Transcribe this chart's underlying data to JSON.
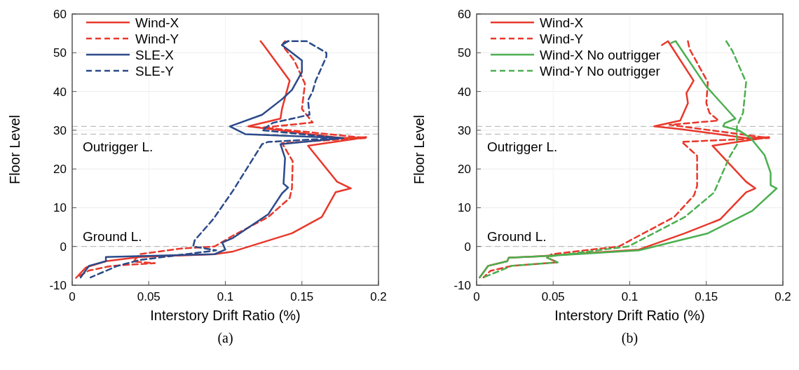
{
  "chart_data": [
    {
      "type": "line",
      "xlabel": "Interstory Drift Ratio (%)",
      "ylabel": "Floor Level",
      "xlim": [
        0,
        0.2
      ],
      "xticks": [
        0,
        0.05,
        0.1,
        0.15,
        0.2
      ],
      "ylim": [
        -10,
        60
      ],
      "yticks": [
        -10,
        0,
        10,
        20,
        30,
        40,
        50,
        60
      ],
      "grid": true,
      "legend": "top left",
      "ref_lines": [
        {
          "axis": "y",
          "value": 31,
          "color": "#b0b0b0",
          "line_style": "dashed"
        },
        {
          "axis": "y",
          "value": 29,
          "color": "#b0b0b0",
          "line_style": "dashed"
        },
        {
          "axis": "y",
          "value": 0,
          "color": "#b0b0b0",
          "line_style": "dashed"
        }
      ],
      "annotations": [
        "Outrigger L.",
        "Ground L.",
        "(a)"
      ],
      "series": [
        {
          "name": "Wind-X",
          "color": "#e8382b",
          "line_style": "solid",
          "x": [
            0.123,
            0.125,
            0.142,
            0.137,
            0.136,
            0.115,
            0.176,
            0.192,
            0.154,
            0.173,
            0.182,
            0.172,
            0.163,
            0.1435,
            0.105,
            0.093,
            0.044,
            0.022,
            0.009,
            0.0025
          ],
          "values": [
            53,
            52,
            42.8,
            35.5,
            33,
            31,
            28,
            28.2,
            26,
            16.7,
            15,
            14,
            7.6,
            3.4,
            -1.3,
            -2,
            -2.7,
            -3.8,
            -5.4,
            -8.1
          ]
        },
        {
          "name": "Wind-Y",
          "color": "#e8382b",
          "line_style": "dashed",
          "x": [
            0.139,
            0.137,
            0.145,
            0.152,
            0.15,
            0.157,
            0.125,
            0.192,
            0.137,
            0.144,
            0.1435,
            0.142,
            0.128,
            0.105,
            0.093,
            0.072,
            0.044,
            0.04,
            0.054,
            0.026,
            0.011,
            0.003
          ],
          "values": [
            53,
            52,
            48,
            42,
            35.5,
            32,
            30.7,
            28,
            26.7,
            22,
            15,
            12.5,
            7.6,
            2.8,
            0,
            -0.5,
            -2,
            -3.9,
            -4.3,
            -5,
            -6.2,
            -8
          ]
        },
        {
          "name": "SLE-X",
          "color": "#2b4a8a",
          "line_style": "solid",
          "x": [
            0.141,
            0.137,
            0.15,
            0.15,
            0.1435,
            0.137,
            0.124,
            0.103,
            0.113,
            0.177,
            0.136,
            0.139,
            0.138,
            0.141,
            0.137,
            0.128,
            0.105,
            0.098,
            0.1,
            0.093,
            0.022,
            0.022,
            0.011,
            0.0055
          ],
          "values": [
            53,
            52,
            48,
            45,
            40.4,
            38,
            34,
            31,
            29,
            28,
            26.4,
            22.8,
            16.2,
            15.2,
            13.7,
            8.3,
            2.2,
            1,
            -0.8,
            -2,
            -2.7,
            -3.8,
            -5,
            -8
          ]
        },
        {
          "name": "SLE-Y",
          "color": "#2b4a8a",
          "line_style": "dashed",
          "x": [
            0.138,
            0.141,
            0.153,
            0.166,
            0.166,
            0.159,
            0.157,
            0.154,
            0.155,
            0.131,
            0.124,
            0.175,
            0.128,
            0.124,
            0.105,
            0.092,
            0.08,
            0.079,
            0.094,
            0.044,
            0.029,
            0.012
          ],
          "values": [
            52.5,
            53,
            53,
            50,
            49,
            42.8,
            40,
            37.7,
            34,
            31.9,
            30,
            28,
            27,
            26.4,
            14.4,
            7,
            1.6,
            0,
            -1,
            -3.5,
            -5.1,
            -8
          ]
        }
      ]
    },
    {
      "type": "line",
      "xlabel": "Interstory Drift Ratio (%)",
      "ylabel": "Floor Level",
      "xlim": [
        0,
        0.2
      ],
      "xticks": [
        0,
        0.05,
        0.1,
        0.15,
        0.2
      ],
      "ylim": [
        -10,
        60
      ],
      "yticks": [
        -10,
        0,
        10,
        20,
        30,
        40,
        50,
        60
      ],
      "grid": true,
      "legend": "top left",
      "ref_lines": [
        {
          "axis": "y",
          "value": 31,
          "color": "#b0b0b0",
          "line_style": "dashed"
        },
        {
          "axis": "y",
          "value": 29,
          "color": "#b0b0b0",
          "line_style": "dashed"
        },
        {
          "axis": "y",
          "value": 0,
          "color": "#b0b0b0",
          "line_style": "dashed"
        }
      ],
      "annotations": [
        "Outrigger L.",
        "Ground L.",
        "(b)"
      ],
      "series": [
        {
          "name": "Wind-X",
          "color": "#e8382b",
          "line_style": "solid",
          "x": [
            0.121,
            0.125,
            0.1417,
            0.137,
            0.138,
            0.133,
            0.116,
            0.133,
            0.176,
            0.191,
            0.154,
            0.176,
            0.182,
            0.176,
            0.159,
            0.136,
            0.106,
            0.042,
            0.021,
            0.02,
            0.0076,
            0.002
          ],
          "values": [
            52,
            53,
            42.8,
            39.6,
            37,
            32.5,
            31,
            30.3,
            28,
            28.2,
            26,
            16.7,
            15,
            14,
            7,
            3.4,
            -0.8,
            -2.5,
            -2.9,
            -3.8,
            -5,
            -8
          ]
        },
        {
          "name": "Wind-Y",
          "color": "#e8382b",
          "line_style": "dashed",
          "x": [
            0.138,
            0.139,
            0.151,
            0.15,
            0.152,
            0.158,
            0.126,
            0.191,
            0.134,
            0.144,
            0.144,
            0.142,
            0.129,
            0.099,
            0.093,
            0.049,
            0.046,
            0.053,
            0.023,
            0.009,
            0.0045
          ],
          "values": [
            53,
            51,
            42.4,
            37,
            34.5,
            32.5,
            31.4,
            28,
            27,
            23.4,
            15.6,
            13.2,
            7.6,
            1.3,
            0,
            -2,
            -2.9,
            -4.1,
            -5,
            -6.3,
            -8
          ]
        },
        {
          "name": "Wind-X No outrigger",
          "color": "#4caf50",
          "line_style": "solid",
          "x": [
            0.127,
            0.13,
            0.15,
            0.169,
            0.162,
            0.161,
            0.171,
            0.179,
            0.188,
            0.192,
            0.192,
            0.196,
            0.18,
            0.151,
            0.106,
            0.044,
            0.021,
            0.02,
            0.0076,
            0.002
          ],
          "values": [
            52.5,
            53,
            41.3,
            33,
            31.8,
            31,
            30,
            28,
            23.6,
            19,
            15.8,
            15,
            9.2,
            3.4,
            -1,
            -2.5,
            -2.9,
            -3.8,
            -5,
            -8
          ]
        },
        {
          "name": "Wind-Y No outrigger",
          "color": "#4caf50",
          "line_style": "dashed",
          "x": [
            0.163,
            0.167,
            0.176,
            0.174,
            0.17,
            0.17,
            0.17,
            0.165,
            0.155,
            0.136,
            0.099,
            0.049,
            0.046,
            0.053,
            0.023,
            0.0045
          ],
          "values": [
            53,
            50.5,
            42.4,
            34.5,
            31,
            28,
            26.3,
            23,
            13.9,
            7.6,
            0,
            -2.5,
            -2.9,
            -4.1,
            -5,
            -8
          ]
        }
      ]
    }
  ]
}
